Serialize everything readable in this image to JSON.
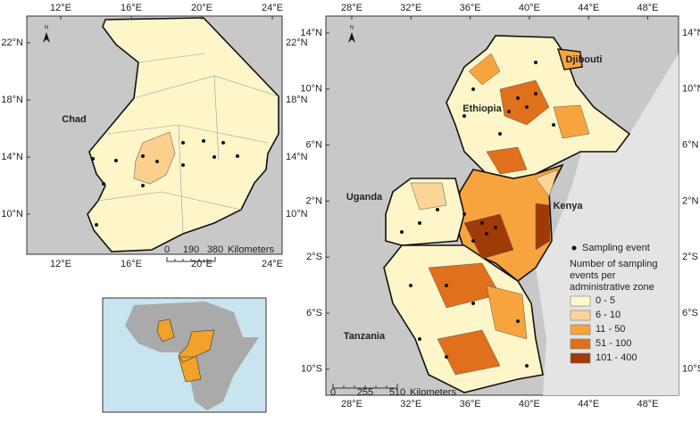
{
  "left_map": {
    "lon_labels": [
      "12°E",
      "16°E",
      "20°E",
      "24°E"
    ],
    "lat_labels": [
      "22°N",
      "18°N",
      "14°N",
      "10°N"
    ],
    "north": "N",
    "country": "Chad",
    "scale_bar": {
      "ticks": [
        "0",
        "190",
        "380"
      ],
      "unit": "Kilometers"
    }
  },
  "right_map": {
    "lon_labels": [
      "28°E",
      "32°E",
      "36°E",
      "40°E",
      "44°E",
      "48°E"
    ],
    "lat_labels": [
      "14°N",
      "10°N",
      "6°N",
      "2°N",
      "2°S",
      "6°S",
      "10°S"
    ],
    "north": "N",
    "countries": [
      "Djibouti",
      "Ethiopia",
      "Uganda",
      "Kenya",
      "Tanzania"
    ],
    "scale_bar": {
      "ticks": [
        "0",
        "255",
        "510"
      ],
      "unit": "Kilometers"
    },
    "legend": {
      "point": "Sampling event",
      "title_lines": [
        "Number of sampling",
        "events per",
        "administrative zone"
      ],
      "classes": [
        {
          "label": "0 - 5",
          "color": "#fff7cc"
        },
        {
          "label": "6 - 10",
          "color": "#fcd596"
        },
        {
          "label": "11 - 50",
          "color": "#f7a43f"
        },
        {
          "label": "51 - 100",
          "color": "#e0701b"
        },
        {
          "label": "101 - 400",
          "color": "#a03a07"
        }
      ]
    }
  }
}
